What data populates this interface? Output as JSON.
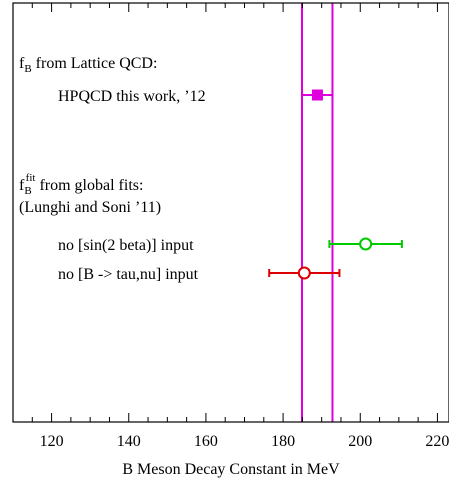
{
  "chart_data": {
    "type": "scatter",
    "title": "",
    "xlabel": "B Meson Decay Constant in MeV",
    "ylabel": "",
    "xlim": [
      110,
      223
    ],
    "x_ticks": [
      120,
      140,
      160,
      180,
      200,
      220
    ],
    "x_tick_labels": [
      "120",
      "140",
      "160",
      "180",
      "200",
      "220"
    ],
    "grid": false,
    "band": {
      "low": 184.9,
      "high": 192.8,
      "color": "#dd00dd"
    },
    "section_labels": [
      {
        "main": "f",
        "sub": "B",
        "sup": "",
        "rest": " from Lattice QCD:"
      },
      {
        "main": "f",
        "sub": "B",
        "sup": "fit",
        "rest": " from global fits:",
        "line2": "(Lunghi and Soni ’11)"
      }
    ],
    "series": [
      {
        "name": "HPQCD this work, ’12",
        "value": 188.9,
        "err_low": 184.9,
        "err_high": 192.8,
        "marker": "filled-square",
        "color": "#dd00dd"
      },
      {
        "name": "no [sin(2 beta)] input",
        "value": 201.4,
        "err_low": 192.0,
        "err_high": 210.8,
        "marker": "open-circle",
        "color": "#00cc00"
      },
      {
        "name": "no [B -> tau,nu] input",
        "value": 185.5,
        "err_low": 176.4,
        "err_high": 194.6,
        "marker": "open-circle",
        "color": "#dd0000"
      }
    ]
  }
}
